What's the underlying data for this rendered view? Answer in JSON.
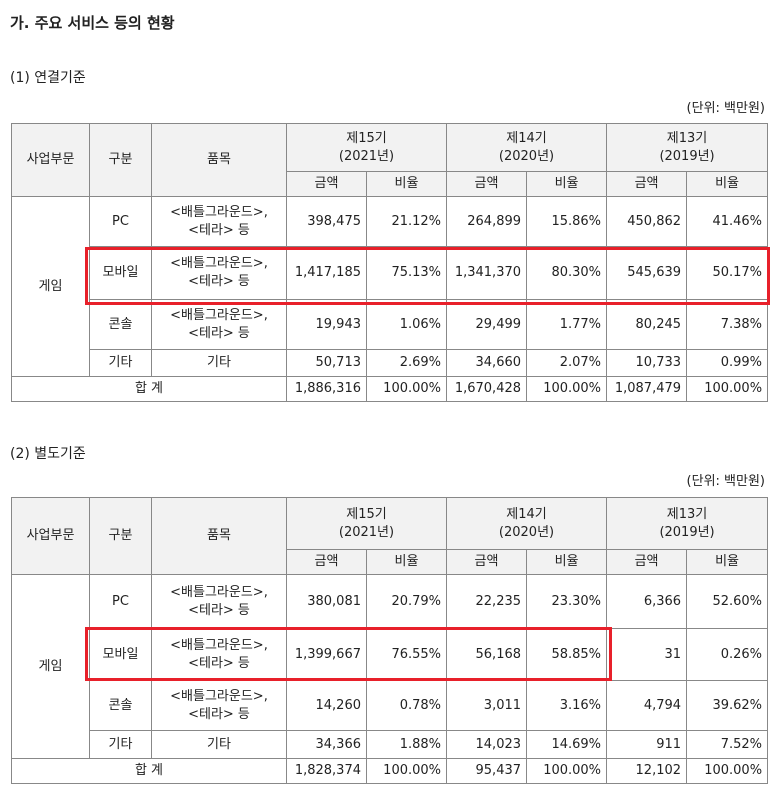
{
  "title": "가. 주요 서비스 등의 현황",
  "headers": {
    "division": "사업부문",
    "category": "구분",
    "item": "품목",
    "amount": "금액",
    "ratio": "비율",
    "periods": [
      {
        "name": "제15기",
        "year": "(2021년)"
      },
      {
        "name": "제14기",
        "year": "(2020년)"
      },
      {
        "name": "제13기",
        "year": "(2019년)"
      }
    ]
  },
  "tables": [
    {
      "subtitle": "(1) 연결기준",
      "unit": "(단위: 백만원)",
      "division": "게임",
      "rows": [
        {
          "category": "PC",
          "item1": "<배틀그라운드>,",
          "item2": "<테라> 등",
          "v": [
            "398,475",
            "21.12%",
            "264,899",
            "15.86%",
            "450,862",
            "41.46%"
          ]
        },
        {
          "category": "모바일",
          "item1": "<배틀그라운드>,",
          "item2": "<테라> 등",
          "v": [
            "1,417,185",
            "75.13%",
            "1,341,370",
            "80.30%",
            "545,639",
            "50.17%"
          ]
        },
        {
          "category": "콘솔",
          "item1": "<배틀그라운드>,",
          "item2": "<테라> 등",
          "v": [
            "19,943",
            "1.06%",
            "29,499",
            "1.77%",
            "80,245",
            "7.38%"
          ]
        },
        {
          "category": "기타",
          "item1": "기타",
          "item2": "",
          "v": [
            "50,713",
            "2.69%",
            "34,660",
            "2.07%",
            "10,733",
            "0.99%"
          ]
        }
      ],
      "total": {
        "label": "합 계",
        "v": [
          "1,886,316",
          "100.00%",
          "1,670,428",
          "100.00%",
          "1,087,479",
          "100.00%"
        ]
      }
    },
    {
      "subtitle": "(2) 별도기준",
      "unit": "(단위: 백만원)",
      "division": "게임",
      "rows": [
        {
          "category": "PC",
          "item1": "<배틀그라운드>,",
          "item2": "<테라> 등",
          "v": [
            "380,081",
            "20.79%",
            "22,235",
            "23.30%",
            "6,366",
            "52.60%"
          ]
        },
        {
          "category": "모바일",
          "item1": "<배틀그라운드>,",
          "item2": "<테라> 등",
          "v": [
            "1,399,667",
            "76.55%",
            "56,168",
            "58.85%",
            "31",
            "0.26%"
          ]
        },
        {
          "category": "콘솔",
          "item1": "<배틀그라운드>,",
          "item2": "<테라> 등",
          "v": [
            "14,260",
            "0.78%",
            "3,011",
            "3.16%",
            "4,794",
            "39.62%"
          ]
        },
        {
          "category": "기타",
          "item1": "기타",
          "item2": "",
          "v": [
            "34,366",
            "1.88%",
            "14,023",
            "14.69%",
            "911",
            "7.52%"
          ]
        }
      ],
      "total": {
        "label": "합 계",
        "v": [
          "1,828,374",
          "100.00%",
          "95,437",
          "100.00%",
          "12,102",
          "100.00%"
        ]
      }
    }
  ]
}
